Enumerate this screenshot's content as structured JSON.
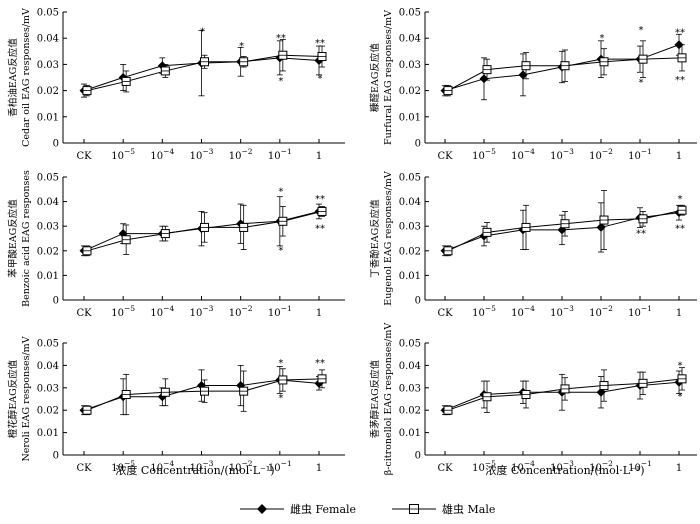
{
  "chart_data": [
    {
      "type": "line",
      "ylabel_cn": "香柏油EAG反应值",
      "ylabel_en": "Cedar oil EAG responses/mV",
      "categories": [
        "CK",
        "10^-5",
        "10^-4",
        "10^-3",
        "10^-2",
        "10^-1",
        "1"
      ],
      "ylim": [
        0,
        0.05
      ],
      "yticks": [
        "0",
        "0.01",
        "0.02",
        "0.03",
        "0.04",
        "0.05"
      ],
      "series": [
        {
          "name": "雌虫 Female",
          "values": [
            0.02,
            0.025,
            0.0295,
            0.0305,
            0.031,
            0.0325,
            0.0315
          ],
          "errors": [
            0.0025,
            0.005,
            0.003,
            0.0125,
            0.0055,
            0.0065,
            0.0055
          ]
        },
        {
          "name": "雄虫 Male",
          "values": [
            0.02,
            0.0235,
            0.0275,
            0.031,
            0.031,
            0.0335,
            0.033
          ],
          "errors": [
            0.002,
            0.004,
            0.0025,
            0.0025,
            0.002,
            0.006,
            0.004
          ]
        }
      ],
      "annotations": [
        {
          "cat": 3,
          "y": 0.043,
          "text": "*"
        },
        {
          "cat": 4,
          "y": 0.0375,
          "text": "*"
        },
        {
          "cat": 5,
          "y": 0.0405,
          "text": "**"
        },
        {
          "cat": 5,
          "y": 0.024,
          "text": "*"
        },
        {
          "cat": 6,
          "y": 0.0385,
          "text": "**"
        },
        {
          "cat": 6,
          "y": 0.025,
          "text": "*"
        }
      ]
    },
    {
      "type": "line",
      "ylabel_cn": "糠醛EAG反应值",
      "ylabel_en": "Furfural EAG responses/mV",
      "categories": [
        "CK",
        "10^-5",
        "10^-4",
        "10^-3",
        "10^-2",
        "10^-1",
        "1"
      ],
      "ylim": [
        0,
        0.05
      ],
      "yticks": [
        "0",
        "0.01",
        "0.02",
        "0.03",
        "0.04",
        "0.05"
      ],
      "series": [
        {
          "name": "雌虫 Female",
          "values": [
            0.02,
            0.0245,
            0.026,
            0.029,
            0.032,
            0.032,
            0.0375
          ],
          "errors": [
            0.002,
            0.008,
            0.008,
            0.006,
            0.007,
            0.005,
            0.004
          ]
        },
        {
          "name": "雄虫 Male",
          "values": [
            0.02,
            0.028,
            0.0295,
            0.0295,
            0.031,
            0.032,
            0.0325
          ],
          "errors": [
            0.002,
            0.004,
            0.005,
            0.006,
            0.005,
            0.007,
            0.005
          ]
        }
      ],
      "annotations": [
        {
          "cat": 4,
          "y": 0.0405,
          "text": "*"
        },
        {
          "cat": 5,
          "y": 0.0435,
          "text": "*"
        },
        {
          "cat": 5,
          "y": 0.0235,
          "text": "*"
        },
        {
          "cat": 6,
          "y": 0.0425,
          "text": "**"
        },
        {
          "cat": 6,
          "y": 0.0245,
          "text": "**"
        }
      ]
    },
    {
      "type": "line",
      "ylabel_cn": "苯甲酸EAG反应值",
      "ylabel_en": "Benzoic acid EAG responses",
      "categories": [
        "CK",
        "10^-5",
        "10^-4",
        "10^-3",
        "10^-2",
        "10^-1",
        "1"
      ],
      "ylim": [
        0,
        0.05
      ],
      "yticks": [
        "0",
        "0.01",
        "0.02",
        "0.03",
        "0.04",
        "0.05"
      ],
      "series": [
        {
          "name": "雌虫 Female",
          "values": [
            0.02,
            0.027,
            0.027,
            0.029,
            0.031,
            0.032,
            0.036
          ],
          "errors": [
            0.002,
            0.004,
            0.003,
            0.007,
            0.008,
            0.01,
            0.003
          ]
        },
        {
          "name": "雄虫 Male",
          "values": [
            0.02,
            0.0245,
            0.027,
            0.0295,
            0.0295,
            0.032,
            0.036
          ],
          "errors": [
            0.002,
            0.006,
            0.003,
            0.006,
            0.009,
            0.006,
            0.002
          ]
        }
      ],
      "annotations": [
        {
          "cat": 5,
          "y": 0.0445,
          "text": "*"
        },
        {
          "cat": 5,
          "y": 0.0205,
          "text": "*"
        },
        {
          "cat": 6,
          "y": 0.0415,
          "text": "**"
        },
        {
          "cat": 6,
          "y": 0.0295,
          "text": "**"
        }
      ]
    },
    {
      "type": "line",
      "ylabel_cn": "丁香酚EAG反应值",
      "ylabel_en": "Eugenol EAG responses/mV",
      "categories": [
        "CK",
        "10^-5",
        "10^-4",
        "10^-3",
        "10^-2",
        "10^-1",
        "1"
      ],
      "ylim": [
        0,
        0.05
      ],
      "yticks": [
        "0",
        "0.01",
        "0.02",
        "0.03",
        "0.04",
        "0.05"
      ],
      "series": [
        {
          "name": "雌虫 Female",
          "values": [
            0.02,
            0.026,
            0.0285,
            0.0285,
            0.0295,
            0.0335,
            0.0355
          ],
          "errors": [
            0.002,
            0.004,
            0.008,
            0.006,
            0.01,
            0.004,
            0.003
          ]
        },
        {
          "name": "雄虫 Male",
          "values": [
            0.02,
            0.0275,
            0.0295,
            0.031,
            0.0325,
            0.033,
            0.0365
          ],
          "errors": [
            0.002,
            0.004,
            0.009,
            0.005,
            0.012,
            0.003,
            0.002
          ]
        }
      ],
      "annotations": [
        {
          "cat": 5,
          "y": 0.0275,
          "text": "**"
        },
        {
          "cat": 6,
          "y": 0.0415,
          "text": "*"
        },
        {
          "cat": 6,
          "y": 0.0295,
          "text": "**"
        }
      ]
    },
    {
      "type": "line",
      "ylabel_cn": "橙花醇EAG反应值",
      "ylabel_en": "Neroli EAG responses/mV",
      "categories": [
        "CK",
        "10^-5",
        "10^-4",
        "10^-3",
        "10^-2",
        "10^-1",
        "1"
      ],
      "ylim": [
        0,
        0.05
      ],
      "yticks": [
        "0",
        "0.01",
        "0.02",
        "0.03",
        "0.04",
        "0.05"
      ],
      "series": [
        {
          "name": "雌虫 Female",
          "values": [
            0.02,
            0.026,
            0.026,
            0.031,
            0.031,
            0.0335,
            0.032
          ],
          "errors": [
            0.002,
            0.008,
            0.004,
            0.007,
            0.009,
            0.006,
            0.003
          ]
        },
        {
          "name": "雄虫 Male",
          "values": [
            0.02,
            0.027,
            0.028,
            0.0285,
            0.0285,
            0.0335,
            0.034
          ],
          "errors": [
            0.002,
            0.009,
            0.006,
            0.005,
            0.009,
            0.005,
            0.004
          ]
        }
      ],
      "annotations": [
        {
          "cat": 5,
          "y": 0.0415,
          "text": "*"
        },
        {
          "cat": 5,
          "y": 0.026,
          "text": "*"
        },
        {
          "cat": 6,
          "y": 0.0415,
          "text": "**"
        }
      ]
    },
    {
      "type": "line",
      "ylabel_cn": "香茅醇EAG反应值",
      "ylabel_en": "β-citronellol EAG responses/mV",
      "categories": [
        "CK",
        "10^-5",
        "10^-4",
        "10^-3",
        "10^-2",
        "10^-1",
        "1"
      ],
      "ylim": [
        0,
        0.05
      ],
      "yticks": [
        "0",
        "0.01",
        "0.02",
        "0.03",
        "0.04",
        "0.05"
      ],
      "series": [
        {
          "name": "雌虫 Female",
          "values": [
            0.02,
            0.027,
            0.028,
            0.028,
            0.028,
            0.031,
            0.0325
          ],
          "errors": [
            0.002,
            0.006,
            0.005,
            0.008,
            0.007,
            0.006,
            0.005
          ]
        },
        {
          "name": "雄虫 Male",
          "values": [
            0.02,
            0.026,
            0.027,
            0.0295,
            0.031,
            0.032,
            0.034
          ],
          "errors": [
            0.002,
            0.007,
            0.006,
            0.005,
            0.007,
            0.005,
            0.005
          ]
        }
      ],
      "annotations": [
        {
          "cat": 6,
          "y": 0.0405,
          "text": "*"
        },
        {
          "cat": 6,
          "y": 0.0265,
          "text": "*"
        }
      ]
    }
  ],
  "xlabel": "浓度  Concentration/(mol·L⁻¹)",
  "legend": {
    "female": "雌虫  Female",
    "male": "雄虫  Male"
  }
}
